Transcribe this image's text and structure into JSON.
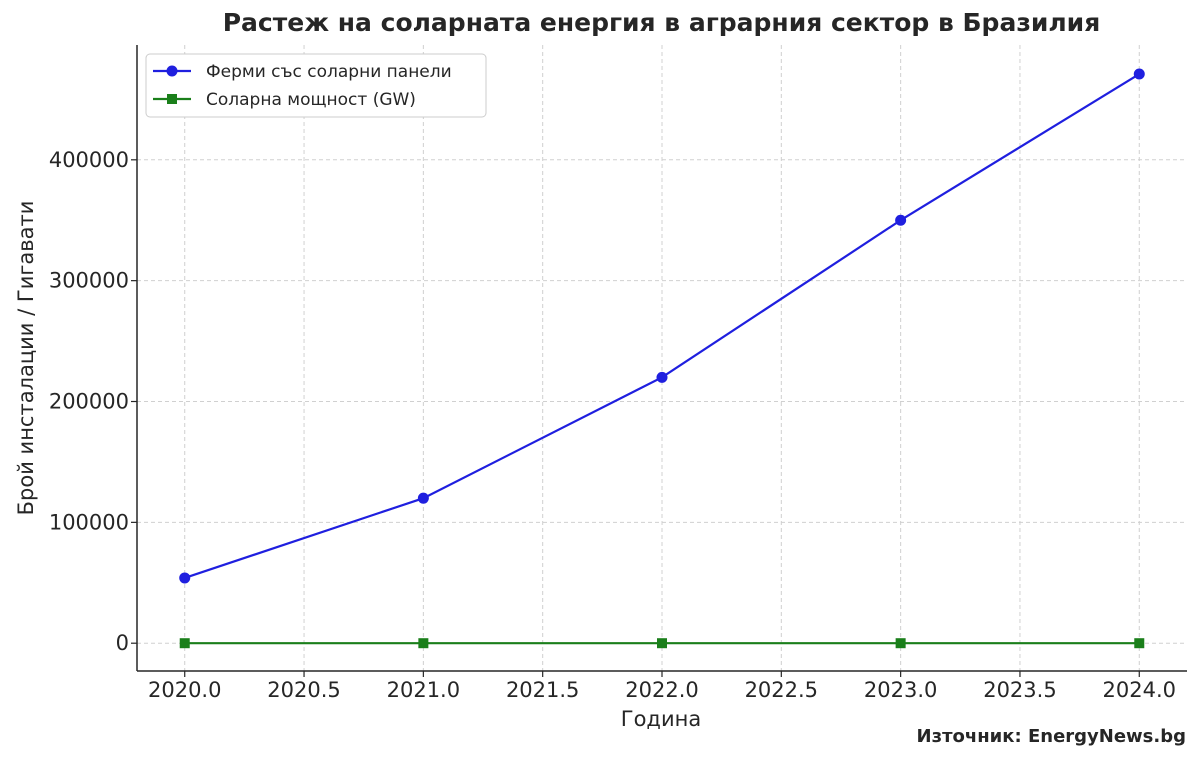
{
  "chart_data": {
    "type": "line",
    "title": "Растеж на соларната енергия в аграрния сектор в Бразилия",
    "xlabel": "Година",
    "ylabel": "Брой инсталации / Гигавати",
    "x": [
      2020,
      2021,
      2022,
      2023,
      2024
    ],
    "xlim": [
      2019.8,
      2024.2
    ],
    "ylim": [
      -23000,
      495000
    ],
    "x_ticks": [
      "2020.0",
      "2020.5",
      "2021.0",
      "2021.5",
      "2022.0",
      "2022.5",
      "2023.0",
      "2023.5",
      "2024.0"
    ],
    "x_tick_values": [
      2020.0,
      2020.5,
      2021.0,
      2021.5,
      2022.0,
      2022.5,
      2023.0,
      2023.5,
      2024.0
    ],
    "y_ticks": [
      "0",
      "100000",
      "200000",
      "300000",
      "400000"
    ],
    "y_tick_values": [
      0,
      100000,
      200000,
      300000,
      400000
    ],
    "grid": true,
    "legend_position": "top-left",
    "series": [
      {
        "name": "Ферми със соларни панели",
        "values": [
          54000,
          120000,
          220000,
          350000,
          471000
        ],
        "color": "#1f1fdf",
        "marker": "circle"
      },
      {
        "name": "Соларна мощност (GW)",
        "values": [
          0.5,
          0.9,
          1.6,
          2.4,
          3.1
        ],
        "color": "#1a7f1a",
        "marker": "square"
      }
    ]
  },
  "source": "Източник: EnergyNews.bg"
}
